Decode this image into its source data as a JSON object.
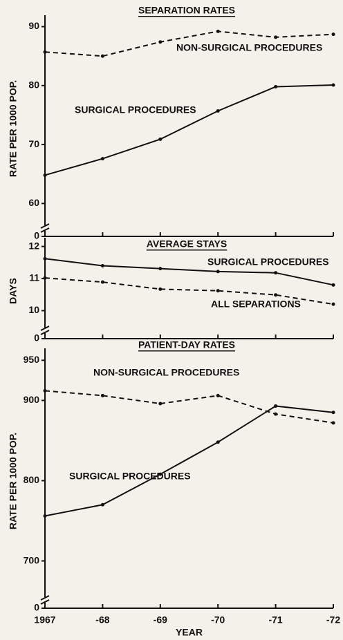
{
  "chart_data": [
    {
      "type": "line",
      "title": "SEPARATION RATES",
      "ylabel": "RATE PER 1000 POP.",
      "series": [
        {
          "name": "NON-SURGICAL PROCEDURES",
          "color": "#111111",
          "dash": true,
          "values": [
            85.7,
            85.0,
            87.4,
            89.2,
            88.2,
            88.7
          ]
        },
        {
          "name": "SURGICAL PROCEDURES",
          "color": "#111111",
          "dash": false,
          "values": [
            64.8,
            67.6,
            70.9,
            75.7,
            79.8,
            80.1
          ]
        }
      ],
      "ylim": [
        0,
        91
      ],
      "axis_break": [
        0,
        57
      ],
      "yticks": [
        0,
        60,
        70,
        80,
        90
      ]
    },
    {
      "type": "line",
      "title": "AVERAGE STAYS",
      "ylabel": "DAYS",
      "series": [
        {
          "name": "SURGICAL PROCEDURES",
          "color": "#111111",
          "dash": false,
          "values": [
            11.62,
            11.4,
            11.31,
            11.22,
            11.18,
            10.8
          ]
        },
        {
          "name": "ALL SEPARATIONS",
          "color": "#111111",
          "dash": true,
          "values": [
            11.02,
            10.89,
            10.67,
            10.62,
            10.49,
            10.2
          ]
        }
      ],
      "ylim": [
        0,
        12.1
      ],
      "axis_break": [
        0,
        9.6
      ],
      "yticks": [
        0,
        10,
        11,
        12
      ]
    },
    {
      "type": "line",
      "title": "PATIENT-DAY RATES",
      "ylabel": "RATE PER 1000 POP.",
      "xlabel": "YEAR",
      "categories": [
        "1967",
        "-68",
        "-69",
        "-70",
        "-71",
        "-72"
      ],
      "series": [
        {
          "name": "NON-SURGICAL PROCEDURES",
          "color": "#111111",
          "dash": true,
          "values": [
            912,
            906,
            896,
            906,
            883,
            872
          ]
        },
        {
          "name": "SURGICAL PROCEDURES",
          "color": "#111111",
          "dash": false,
          "values": [
            756,
            770,
            808,
            848,
            893,
            885
          ]
        }
      ],
      "ylim": [
        0,
        958
      ],
      "axis_break": [
        0,
        660
      ],
      "yticks": [
        0,
        700,
        800,
        900,
        950
      ]
    }
  ]
}
